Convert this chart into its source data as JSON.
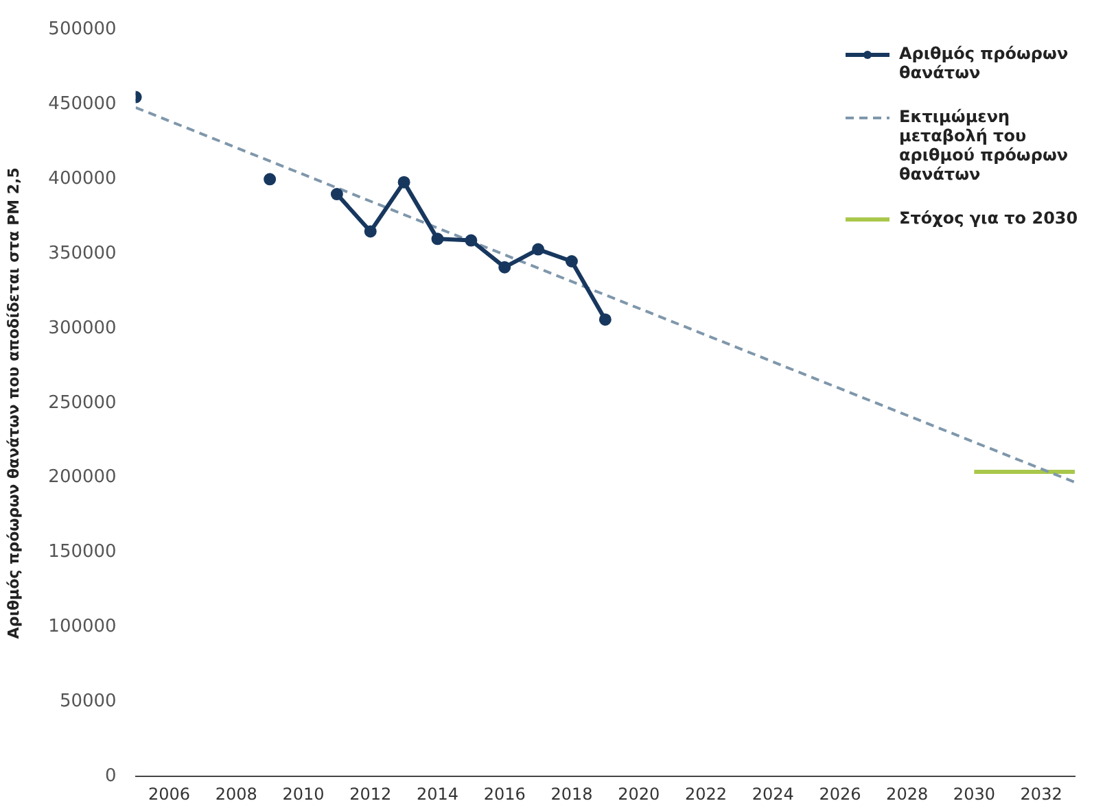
{
  "chart_data": {
    "type": "line",
    "ylabel": "Αριθμός πρόωρων θανάτων που αποδίδεται στα PM 2,5",
    "xlim": [
      2005,
      2033
    ],
    "xticks": [
      2006,
      2008,
      2010,
      2012,
      2014,
      2016,
      2018,
      2020,
      2022,
      2024,
      2026,
      2028,
      2030,
      2032
    ],
    "ylim": [
      0,
      500000
    ],
    "yticks": [
      0,
      50000,
      100000,
      150000,
      200000,
      250000,
      300000,
      350000,
      400000,
      450000,
      500000
    ],
    "grid": false,
    "legend": "top right",
    "series": [
      {
        "name": "Αριθμός πρόωρων θανάτων",
        "color": "#17375e",
        "marker": "circle",
        "line_style": "solid",
        "x": [
          2005,
          2006,
          2007,
          2008,
          2009,
          2010,
          2011,
          2012,
          2013,
          2014,
          2015,
          2016,
          2017,
          2018,
          2019
        ],
        "values": [
          455000,
          null,
          null,
          null,
          400000,
          null,
          390000,
          365000,
          398000,
          360000,
          359000,
          341000,
          353000,
          345000,
          306000
        ]
      },
      {
        "name": "Εκτιμώμενη μεταβολή του αριθμού πρόωρων θανάτων",
        "color": "#7f97ab",
        "marker": "none",
        "line_style": "dashed",
        "x": [
          2005,
          2033
        ],
        "values": [
          448000,
          197000
        ]
      },
      {
        "name": "Στόχος για το 2030",
        "color": "#a9c74a",
        "marker": "none",
        "line_style": "solid",
        "x": [
          2030,
          2033
        ],
        "values": [
          204000,
          204000
        ]
      }
    ]
  }
}
